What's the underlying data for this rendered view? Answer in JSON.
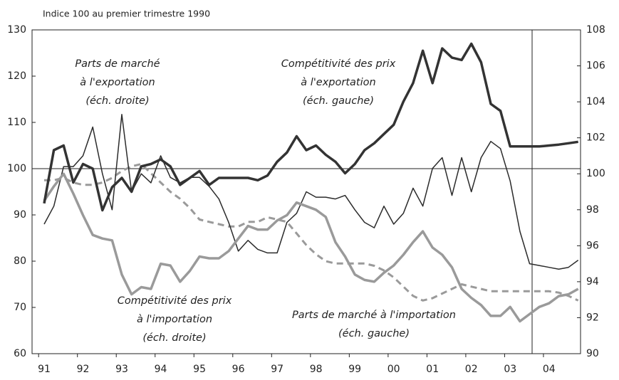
{
  "chart_data": {
    "type": "line",
    "subtitle": "Indice 100 au premier trimestre 1990",
    "categories": [
      "91",
      null,
      null,
      null,
      "92",
      null,
      null,
      null,
      "93",
      null,
      null,
      null,
      "94",
      null,
      null,
      null,
      "95",
      null,
      null,
      null,
      "96",
      null,
      null,
      null,
      "97",
      null,
      null,
      null,
      "98",
      null,
      null,
      null,
      "99",
      null,
      null,
      null,
      "00",
      null,
      null,
      null,
      "01",
      null,
      null,
      null,
      "02",
      null,
      null,
      null,
      "03",
      null,
      null,
      null,
      "04",
      null,
      null,
      null
    ],
    "ylim": [
      60,
      130
    ],
    "yticks": [
      60,
      70,
      80,
      90,
      100,
      110,
      120,
      130
    ],
    "y2lim": [
      90,
      108
    ],
    "y2ticks": [
      90,
      92,
      94,
      96,
      98,
      100,
      102,
      104,
      106,
      108
    ],
    "reference_line": 100,
    "series": [
      {
        "name": "Parts de marché à l'importation (éch. gauche)",
        "color": "#9a9a9a",
        "dash": true,
        "values": [
          97.5,
          97.5,
          98,
          97,
          96.5,
          96.5,
          97,
          98,
          99.5,
          100.5,
          101,
          99,
          97,
          95,
          93.5,
          91.5,
          89,
          88.5,
          88,
          87.5,
          87.5,
          88.5,
          88.5,
          89.5,
          89,
          88.5,
          86,
          83.5,
          81.5,
          80,
          79.5,
          79.5,
          79.5,
          79.5,
          79,
          78,
          76.5,
          74.5,
          72.5,
          71.5,
          72,
          73,
          74,
          75,
          74.5,
          74,
          73.5,
          73.5,
          73.5,
          73.5,
          73.5,
          73.5,
          73.5,
          73.2,
          72.5,
          71.5
        ]
      },
      {
        "name": "Parts de marché à l'exportation (éch. droite)",
        "color": "#2b2b2b",
        "axis": "y2",
        "values": [
          97.2,
          98.2,
          100.4,
          100.4,
          101,
          102.6,
          100,
          98,
          103.3,
          99,
          100,
          99.5,
          101,
          99.8,
          99.5,
          99.8,
          99.8,
          99.3,
          98.6,
          97.3,
          95.7,
          96.3,
          95.8,
          95.6,
          95.6,
          97.3,
          97.8,
          99,
          98.7,
          98.7,
          98.6,
          98.8,
          98,
          97.3,
          97,
          98.2,
          97.2,
          97.8,
          99.2,
          98.2,
          100.3,
          100.9,
          98.8,
          100.9,
          99,
          100.9,
          101.8,
          101.4,
          99.6,
          96.8,
          95,
          94.9,
          94.8,
          94.7,
          94.8,
          95.2
        ]
      },
      {
        "name": "Compétitivité des prix à l'importation (éch. droite)",
        "color": "#9a9a9a",
        "axis": "y2",
        "values": [
          98.5,
          99.3,
          100,
          98.9,
          97.7,
          96.6,
          96.4,
          96.3,
          94.4,
          93.3,
          93.7,
          93.6,
          95,
          94.9,
          94,
          94.6,
          95.4,
          95.3,
          95.3,
          95.7,
          96.4,
          97.1,
          96.9,
          96.9,
          97.4,
          97.7,
          98.4,
          98.2,
          98,
          97.6,
          96.2,
          95.4,
          94.4,
          94.1,
          94,
          94.5,
          94.9,
          95.5,
          96.2,
          96.8,
          95.9,
          95.5,
          94.8,
          93.6,
          93.1,
          92.7,
          92.1,
          92.1,
          92.6,
          91.8,
          92.2,
          92.6,
          92.8,
          93.2,
          93.3,
          93.6
        ]
      },
      {
        "name": "Compétitivité des prix à l'exportation (éch. gauche)",
        "color": "#333333",
        "values": [
          92.5,
          104,
          105,
          97,
          101,
          100,
          91,
          96,
          98,
          95,
          100.5,
          101,
          102,
          100.5,
          96.5,
          98,
          99.5,
          96.5,
          98,
          98,
          98,
          98,
          97.5,
          98.5,
          101.5,
          103.5,
          107,
          104,
          105,
          103,
          101.5,
          99,
          101,
          104,
          105.5,
          107.5,
          109.5,
          114.5,
          118.5,
          125.5,
          118.5,
          126,
          124,
          123.5,
          127,
          123,
          114,
          112.5,
          104.8,
          104.8,
          104.8,
          104.8,
          105,
          105.2,
          105.5,
          105.8
        ]
      }
    ],
    "annotations": [
      [
        "Parts de marché",
        "à l'exportation",
        "(éch. droite)"
      ],
      [
        "Compétitivité des prix",
        "à l'exportation",
        "(éch. gauche)"
      ],
      [
        "Compétitivité des prix",
        "à l'importation",
        "(éch. droite)"
      ],
      [
        "Parts de marché à l'importation",
        "(éch. gauche)"
      ]
    ]
  }
}
